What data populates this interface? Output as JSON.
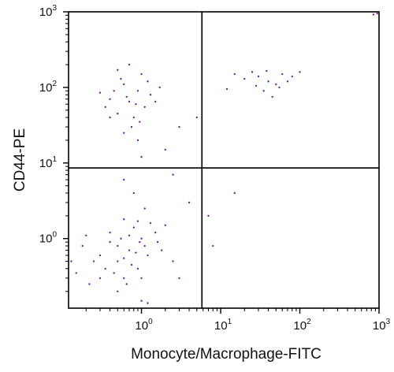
{
  "chart_data": {
    "type": "scatter",
    "title": "",
    "xlabel": "Monocyte/Macrophage-FITC",
    "ylabel": "CD44-PE",
    "x_scale": "log",
    "y_scale": "log",
    "xlim": [
      0.12,
      1000
    ],
    "ylim": [
      0.12,
      1000
    ],
    "x_ticks": [
      {
        "value": 1,
        "base": "10",
        "exp": "0"
      },
      {
        "value": 10,
        "base": "10",
        "exp": "1"
      },
      {
        "value": 100,
        "base": "10",
        "exp": "2"
      },
      {
        "value": 1000,
        "base": "10",
        "exp": "3"
      }
    ],
    "y_ticks": [
      {
        "value": 1,
        "base": "10",
        "exp": "0"
      },
      {
        "value": 10,
        "base": "10",
        "exp": "1"
      },
      {
        "value": 100,
        "base": "10",
        "exp": "2"
      },
      {
        "value": 1000,
        "base": "10",
        "exp": "3"
      }
    ],
    "quadrant_gates": {
      "x": 5.8,
      "y": 8.6
    },
    "grid": false,
    "point_color": "#6a1b8e",
    "series": [
      {
        "points": [
          [
            0.7,
            0.7
          ],
          [
            0.5,
            0.5
          ],
          [
            1.0,
            1.0
          ],
          [
            0.4,
            0.9
          ],
          [
            1.2,
            0.6
          ],
          [
            0.6,
            0.3
          ],
          [
            0.8,
            1.4
          ],
          [
            0.3,
            0.6
          ],
          [
            0.9,
            0.4
          ],
          [
            1.5,
            1.2
          ],
          [
            0.5,
            0.8
          ],
          [
            0.7,
            1.1
          ],
          [
            1.1,
            0.8
          ],
          [
            0.6,
            0.55
          ],
          [
            0.45,
            0.35
          ],
          [
            1.3,
            1.6
          ],
          [
            0.85,
            0.65
          ],
          [
            0.55,
            1.0
          ],
          [
            0.75,
            0.45
          ],
          [
            0.95,
            0.9
          ],
          [
            0.35,
            0.4
          ],
          [
            1.6,
            0.9
          ],
          [
            0.65,
            0.25
          ],
          [
            0.4,
            1.2
          ],
          [
            0.25,
            0.5
          ],
          [
            2.0,
            1.5
          ],
          [
            1.8,
            0.7
          ],
          [
            0.6,
            1.8
          ],
          [
            0.5,
            0.2
          ],
          [
            1.0,
            0.3
          ],
          [
            0.3,
            0.3
          ],
          [
            0.9,
            1.7
          ],
          [
            0.7,
            65
          ],
          [
            0.5,
            45
          ],
          [
            0.9,
            90
          ],
          [
            0.4,
            70
          ],
          [
            1.1,
            55
          ],
          [
            0.6,
            110
          ],
          [
            0.8,
            40
          ],
          [
            0.35,
            55
          ],
          [
            1.3,
            80
          ],
          [
            0.55,
            130
          ],
          [
            0.75,
            30
          ],
          [
            1.0,
            150
          ],
          [
            0.45,
            90
          ],
          [
            0.65,
            75
          ],
          [
            0.85,
            60
          ],
          [
            1.2,
            120
          ],
          [
            0.3,
            85
          ],
          [
            1.5,
            65
          ],
          [
            0.5,
            170
          ],
          [
            0.95,
            35
          ],
          [
            0.6,
            25
          ],
          [
            0.4,
            40
          ],
          [
            0.7,
            200
          ],
          [
            1.7,
            100
          ],
          [
            30,
            140
          ],
          [
            40,
            120
          ],
          [
            25,
            160
          ],
          [
            50,
            110
          ],
          [
            35,
            90
          ],
          [
            60,
            150
          ],
          [
            45,
            75
          ],
          [
            20,
            130
          ],
          [
            70,
            120
          ],
          [
            15,
            150
          ],
          [
            55,
            100
          ],
          [
            28,
            105
          ],
          [
            80,
            140
          ],
          [
            38,
            165
          ],
          [
            12,
            95
          ],
          [
            100,
            160
          ],
          [
            1.0,
            12
          ],
          [
            0.8,
            4.0
          ],
          [
            1.1,
            2.5
          ],
          [
            0.9,
            20
          ],
          [
            2.5,
            7.0
          ],
          [
            4.0,
            3.0
          ],
          [
            3.0,
            30
          ],
          [
            0.6,
            6.0
          ],
          [
            15,
            4.0
          ],
          [
            7.0,
            2.0
          ],
          [
            2.0,
            15
          ],
          [
            5.0,
            40
          ],
          [
            950,
            950
          ],
          [
            850,
            920
          ],
          [
            8.0,
            0.8
          ],
          [
            3.0,
            0.3
          ],
          [
            0.15,
            0.35
          ],
          [
            0.18,
            0.8
          ],
          [
            0.2,
            1.1
          ],
          [
            0.13,
            0.5
          ],
          [
            0.22,
            0.25
          ],
          [
            1.0,
            0.15
          ],
          [
            1.2,
            0.14
          ],
          [
            2.5,
            0.5
          ]
        ]
      }
    ]
  }
}
